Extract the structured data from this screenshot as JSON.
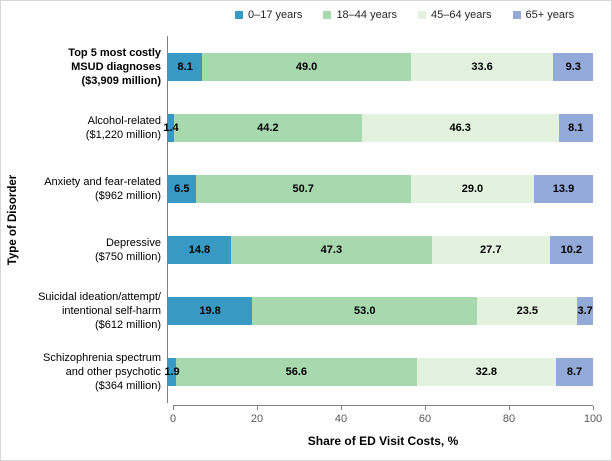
{
  "legend_title": "",
  "chart_data": {
    "type": "bar",
    "stacked": true,
    "orientation": "horizontal",
    "xlabel": "Share of ED Visit Costs,  %",
    "ylabel": "Type of Disorder",
    "xlim": [
      0,
      100
    ],
    "xticks": [
      0,
      20,
      40,
      60,
      80,
      100
    ],
    "legend_position": "top",
    "grid": false,
    "categories": [
      {
        "lines": [
          "Top 5 most costly",
          "MSUD diagnoses",
          "($3,909 million)"
        ],
        "bold": true
      },
      {
        "lines": [
          "Alcohol-related",
          "($1,220 million)"
        ],
        "bold": false
      },
      {
        "lines": [
          "Anxiety and fear-related",
          "($962 million)"
        ],
        "bold": false
      },
      {
        "lines": [
          "Depressive",
          "($750 million)"
        ],
        "bold": false
      },
      {
        "lines": [
          "Suicidal ideation/attempt/",
          "intentional self-harm",
          "($612 million)"
        ],
        "bold": false
      },
      {
        "lines": [
          "Schizophrenia spectrum",
          "and other psychotic",
          "($364 million)"
        ],
        "bold": false
      }
    ],
    "series": [
      {
        "name": "0–17 years",
        "color": "#3799C4",
        "values": [
          8.1,
          1.4,
          6.5,
          14.8,
          19.8,
          1.9
        ]
      },
      {
        "name": "18–44 years",
        "color": "#A8D8AE",
        "values": [
          49.0,
          44.2,
          50.7,
          47.3,
          53.0,
          56.6
        ]
      },
      {
        "name": "45–64 years",
        "color": "#E3F2DF",
        "values": [
          33.6,
          46.3,
          29.0,
          27.7,
          23.5,
          32.8
        ]
      },
      {
        "name": "65+ years",
        "color": "#93A9D8",
        "values": [
          9.3,
          8.1,
          13.9,
          10.2,
          3.7,
          8.7
        ]
      }
    ],
    "colors": {
      "axis_line": "#7f7f7f",
      "tick_label": "#595959",
      "value_label": "#000000"
    }
  }
}
